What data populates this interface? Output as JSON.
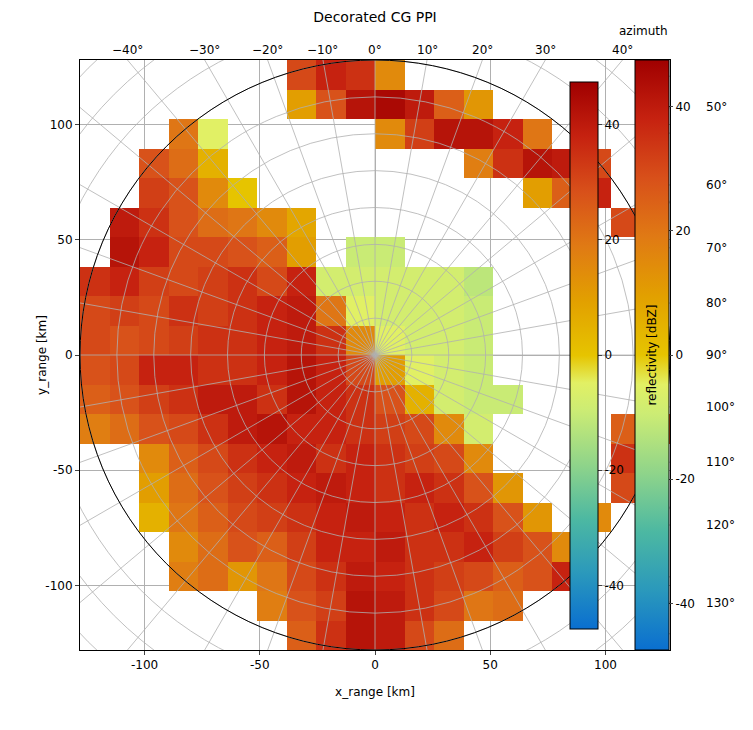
{
  "chart_data": {
    "type": "heatmap",
    "title": "Decorated CG PPI",
    "x_label": "x_range [km]",
    "y_label": "y_range [km]",
    "xlim": [
      -128,
      128
    ],
    "ylim": [
      -128,
      128
    ],
    "xticks": [
      -100,
      -50,
      0,
      50,
      100
    ],
    "yticks": [
      -100,
      -50,
      0,
      50,
      100
    ],
    "grid": true,
    "azimuth_label": "azimuth",
    "azimuth_ticks": [
      {
        "value": -40,
        "label": "−40°"
      },
      {
        "value": -30,
        "label": "−30°"
      },
      {
        "value": -20,
        "label": "−20°"
      },
      {
        "value": -10,
        "label": "−10°"
      },
      {
        "value": 0,
        "label": "0°"
      },
      {
        "value": 10,
        "label": "10°"
      },
      {
        "value": 20,
        "label": "20°"
      },
      {
        "value": 30,
        "label": "30°"
      },
      {
        "value": 40,
        "label": "40°"
      },
      {
        "value": 50,
        "label": "50°"
      },
      {
        "value": 60,
        "label": "60°"
      },
      {
        "value": 70,
        "label": "70°"
      },
      {
        "value": 80,
        "label": "80°"
      },
      {
        "value": 90,
        "label": "90°"
      },
      {
        "value": 100,
        "label": "100°"
      },
      {
        "value": 110,
        "label": "110°"
      },
      {
        "value": 120,
        "label": "120°"
      },
      {
        "value": 130,
        "label": "130°"
      }
    ],
    "range_rings": [
      16,
      32,
      48,
      64,
      80,
      96,
      112,
      128,
      144,
      160,
      176
    ],
    "colorbars": [
      {
        "zlim": [
          -47.5,
          47.5
        ],
        "zticks": [
          -40,
          -20,
          0,
          20,
          40
        ]
      },
      {
        "label": "reflectivity [dBZ]",
        "zlim": [
          -47.5,
          47.5
        ],
        "zticks": [
          -40,
          -20,
          0,
          20,
          40
        ]
      }
    ],
    "x": [
      -121.6,
      -108.8,
      -96,
      -83.2,
      -70.4,
      -57.6,
      -44.8,
      -32,
      -19.2,
      -6.4,
      6.4,
      19.2,
      32,
      44.8,
      57.6,
      70.4,
      83.2,
      96,
      108.8,
      121.6
    ],
    "y": [
      -121.6,
      -108.8,
      -96,
      -83.2,
      -70.4,
      -57.6,
      -44.8,
      -32,
      -19.2,
      -6.4,
      6.4,
      19.2,
      32,
      44.8,
      57.6,
      70.4,
      83.2,
      96,
      108.8,
      121.6
    ],
    "z": [
      [
        null,
        null,
        null,
        null,
        null,
        null,
        null,
        25,
        35,
        42,
        40,
        30,
        22,
        null,
        null,
        null,
        null,
        null,
        null,
        null
      ],
      [
        null,
        null,
        null,
        null,
        null,
        null,
        18,
        28,
        32,
        42,
        40,
        35,
        30,
        20,
        22,
        null,
        null,
        null,
        null,
        null
      ],
      [
        null,
        null,
        null,
        18,
        22,
        12,
        20,
        30,
        35,
        40,
        38,
        35,
        32,
        30,
        25,
        28,
        38,
        null,
        null,
        null
      ],
      [
        null,
        null,
        null,
        15,
        22,
        28,
        25,
        32,
        38,
        38,
        40,
        35,
        35,
        38,
        32,
        28,
        15,
        null,
        null,
        null
      ],
      [
        null,
        null,
        5,
        20,
        25,
        30,
        32,
        35,
        38,
        40,
        38,
        35,
        38,
        35,
        28,
        12,
        null,
        15,
        null,
        null
      ],
      [
        null,
        null,
        10,
        22,
        28,
        32,
        35,
        38,
        40,
        38,
        35,
        38,
        35,
        28,
        12,
        null,
        null,
        null,
        30,
        null
      ],
      [
        null,
        null,
        15,
        25,
        30,
        35,
        38,
        40,
        35,
        38,
        35,
        32,
        30,
        15,
        null,
        null,
        null,
        null,
        35,
        null
      ],
      [
        18,
        22,
        28,
        30,
        35,
        40,
        42,
        38,
        38,
        35,
        32,
        30,
        15,
        -8,
        null,
        null,
        null,
        null,
        25,
        30
      ],
      [
        25,
        28,
        32,
        35,
        40,
        40,
        35,
        42,
        38,
        35,
        28,
        5,
        -8,
        -10,
        -10,
        null,
        null,
        null,
        null,
        null
      ],
      [
        28,
        30,
        38,
        38,
        35,
        35,
        38,
        42,
        38,
        30,
        10,
        -5,
        -8,
        -10,
        null,
        null,
        null,
        null,
        null,
        null
      ],
      [
        30,
        28,
        30,
        32,
        35,
        35,
        38,
        40,
        35,
        15,
        -5,
        -8,
        -8,
        -10,
        null,
        null,
        null,
        null,
        null,
        null
      ],
      [
        30,
        32,
        30,
        35,
        32,
        35,
        38,
        40,
        20,
        -5,
        -8,
        -8,
        -8,
        -10,
        null,
        null,
        null,
        null,
        null,
        null
      ],
      [
        35,
        38,
        32,
        30,
        32,
        35,
        30,
        38,
        -8,
        -8,
        -8,
        -8,
        -8,
        -12,
        null,
        null,
        null,
        null,
        null,
        null
      ],
      [
        null,
        42,
        38,
        30,
        30,
        28,
        25,
        10,
        null,
        -10,
        -10,
        null,
        null,
        null,
        null,
        null,
        null,
        null,
        null,
        null
      ],
      [
        null,
        40,
        35,
        28,
        22,
        20,
        15,
        8,
        null,
        null,
        null,
        null,
        null,
        null,
        null,
        null,
        null,
        null,
        30,
        null
      ],
      [
        null,
        null,
        32,
        28,
        15,
        0,
        null,
        null,
        null,
        null,
        null,
        null,
        null,
        null,
        null,
        10,
        25,
        38,
        null,
        null
      ],
      [
        null,
        null,
        28,
        22,
        5,
        null,
        null,
        null,
        null,
        null,
        null,
        null,
        null,
        18,
        35,
        42,
        40,
        30,
        null,
        null
      ],
      [
        null,
        null,
        null,
        20,
        -5,
        null,
        null,
        null,
        null,
        null,
        15,
        32,
        42,
        42,
        38,
        20,
        null,
        null,
        null,
        null
      ],
      [
        null,
        null,
        null,
        null,
        null,
        null,
        null,
        10,
        28,
        42,
        45,
        40,
        25,
        12,
        null,
        null,
        null,
        null,
        null,
        null
      ],
      [
        null,
        null,
        null,
        null,
        null,
        null,
        null,
        30,
        38,
        35,
        15,
        null,
        null,
        null,
        null,
        null,
        null,
        null,
        null,
        null
      ]
    ]
  }
}
